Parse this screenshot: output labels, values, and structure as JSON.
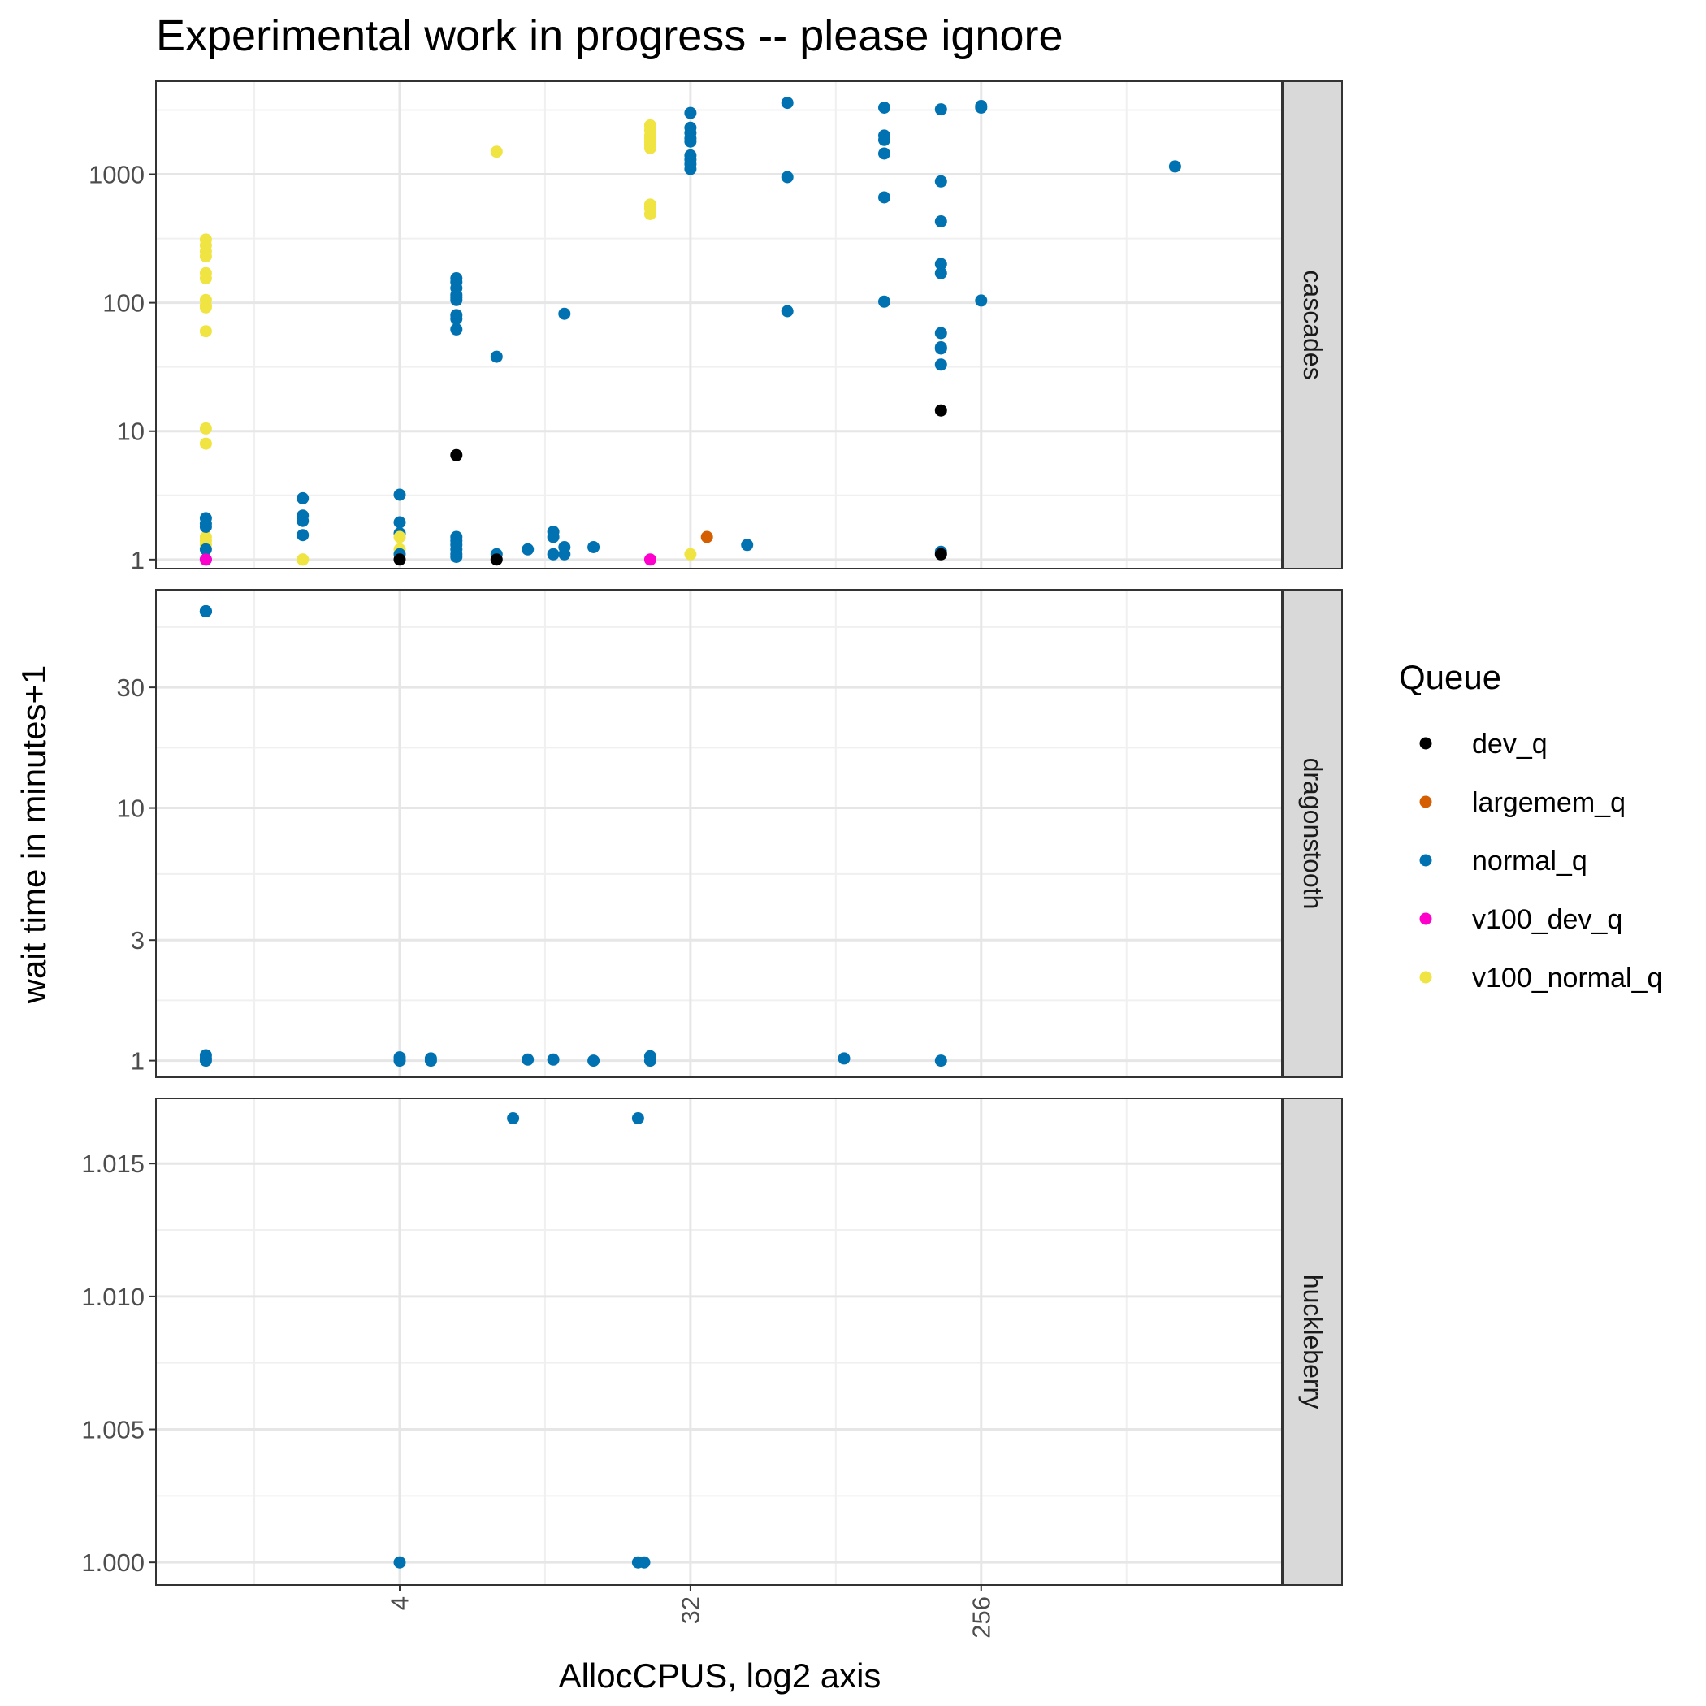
{
  "chart_data": {
    "type": "scatter",
    "title": "Experimental work in progress -- please ignore",
    "xlabel": "AllocCPUS, log2 axis",
    "ylabel": "wait time in minutes+1",
    "x_scale": "log2",
    "x_ticks": [
      4,
      32,
      256
    ],
    "xlim": [
      0.7,
      2200
    ],
    "grid": true,
    "legend": {
      "title": "Queue",
      "position": "right",
      "entries": [
        {
          "name": "dev_q",
          "color": "#000000"
        },
        {
          "name": "largemem_q",
          "color": "#D55E00"
        },
        {
          "name": "normal_q",
          "color": "#0072B2"
        },
        {
          "name": "v100_dev_q",
          "color": "#FF00CC"
        },
        {
          "name": "v100_normal_q",
          "color": "#F0E442"
        }
      ]
    },
    "facets": [
      {
        "label": "cascades",
        "y_scale": "log10",
        "ylim": [
          0.85,
          5300
        ],
        "y_ticks": [
          1,
          10,
          100,
          1000
        ],
        "y_tick_labels": [
          "1",
          "10",
          "100",
          "1000"
        ],
        "points": [
          {
            "queue": "v100_normal_q",
            "x": 1,
            "y": 310
          },
          {
            "queue": "v100_normal_q",
            "x": 1,
            "y": 280
          },
          {
            "queue": "v100_normal_q",
            "x": 1,
            "y": 250
          },
          {
            "queue": "v100_normal_q",
            "x": 1,
            "y": 230
          },
          {
            "queue": "v100_normal_q",
            "x": 1,
            "y": 170
          },
          {
            "queue": "v100_normal_q",
            "x": 1,
            "y": 155
          },
          {
            "queue": "v100_normal_q",
            "x": 1,
            "y": 105
          },
          {
            "queue": "v100_normal_q",
            "x": 1,
            "y": 95
          },
          {
            "queue": "v100_normal_q",
            "x": 1,
            "y": 92
          },
          {
            "queue": "v100_normal_q",
            "x": 1,
            "y": 60
          },
          {
            "queue": "v100_normal_q",
            "x": 1,
            "y": 10.5
          },
          {
            "queue": "v100_normal_q",
            "x": 1,
            "y": 8
          },
          {
            "queue": "v100_normal_q",
            "x": 1,
            "y": 1.5
          },
          {
            "queue": "v100_normal_q",
            "x": 1,
            "y": 1.4
          },
          {
            "queue": "v100_normal_q",
            "x": 1,
            "y": 1.3
          },
          {
            "queue": "normal_q",
            "x": 1,
            "y": 2.1
          },
          {
            "queue": "normal_q",
            "x": 1,
            "y": 1.9
          },
          {
            "queue": "normal_q",
            "x": 1,
            "y": 1.8
          },
          {
            "queue": "normal_q",
            "x": 1,
            "y": 1.2
          },
          {
            "queue": "normal_q",
            "x": 1,
            "y": 1.0
          },
          {
            "queue": "v100_dev_q",
            "x": 1,
            "y": 1.0
          },
          {
            "queue": "normal_q",
            "x": 2,
            "y": 3.0
          },
          {
            "queue": "normal_q",
            "x": 2,
            "y": 2.2
          },
          {
            "queue": "normal_q",
            "x": 2,
            "y": 2.0
          },
          {
            "queue": "normal_q",
            "x": 2,
            "y": 1.55
          },
          {
            "queue": "v100_normal_q",
            "x": 2,
            "y": 1.0
          },
          {
            "queue": "v100_normal_q",
            "x": 2,
            "y": 1.0
          },
          {
            "queue": "normal_q",
            "x": 4,
            "y": 3.2
          },
          {
            "queue": "normal_q",
            "x": 4,
            "y": 1.95
          },
          {
            "queue": "normal_q",
            "x": 4,
            "y": 1.6
          },
          {
            "queue": "v100_normal_q",
            "x": 4,
            "y": 1.5
          },
          {
            "queue": "v100_normal_q",
            "x": 4,
            "y": 1.2
          },
          {
            "queue": "normal_q",
            "x": 4,
            "y": 1.1
          },
          {
            "queue": "dev_q",
            "x": 4,
            "y": 1.0
          },
          {
            "queue": "normal_q",
            "x": 6,
            "y": 155
          },
          {
            "queue": "normal_q",
            "x": 6,
            "y": 145
          },
          {
            "queue": "normal_q",
            "x": 6,
            "y": 130
          },
          {
            "queue": "normal_q",
            "x": 6,
            "y": 115
          },
          {
            "queue": "normal_q",
            "x": 6,
            "y": 110
          },
          {
            "queue": "normal_q",
            "x": 6,
            "y": 105
          },
          {
            "queue": "normal_q",
            "x": 6,
            "y": 80
          },
          {
            "queue": "normal_q",
            "x": 6,
            "y": 75
          },
          {
            "queue": "normal_q",
            "x": 6,
            "y": 62
          },
          {
            "queue": "dev_q",
            "x": 6,
            "y": 6.5
          },
          {
            "queue": "normal_q",
            "x": 6,
            "y": 1.5
          },
          {
            "queue": "normal_q",
            "x": 6,
            "y": 1.4
          },
          {
            "queue": "normal_q",
            "x": 6,
            "y": 1.3
          },
          {
            "queue": "normal_q",
            "x": 6,
            "y": 1.2
          },
          {
            "queue": "normal_q",
            "x": 6,
            "y": 1.1
          },
          {
            "queue": "normal_q",
            "x": 6,
            "y": 1.05
          },
          {
            "queue": "v100_normal_q",
            "x": 8,
            "y": 1500
          },
          {
            "queue": "normal_q",
            "x": 8,
            "y": 38
          },
          {
            "queue": "normal_q",
            "x": 8,
            "y": 1.1
          },
          {
            "queue": "dev_q",
            "x": 8,
            "y": 1.0
          },
          {
            "queue": "normal_q",
            "x": 10,
            "y": 1.2
          },
          {
            "queue": "normal_q",
            "x": 12,
            "y": 1.65
          },
          {
            "queue": "normal_q",
            "x": 12,
            "y": 1.5
          },
          {
            "queue": "normal_q",
            "x": 12,
            "y": 1.1
          },
          {
            "queue": "normal_q",
            "x": 13,
            "y": 82
          },
          {
            "queue": "normal_q",
            "x": 13,
            "y": 1.25
          },
          {
            "queue": "normal_q",
            "x": 13,
            "y": 1.1
          },
          {
            "queue": "normal_q",
            "x": 16,
            "y": 1.25
          },
          {
            "queue": "v100_normal_q",
            "x": 24,
            "y": 2400
          },
          {
            "queue": "v100_normal_q",
            "x": 24,
            "y": 2200
          },
          {
            "queue": "v100_normal_q",
            "x": 24,
            "y": 2000
          },
          {
            "queue": "v100_normal_q",
            "x": 24,
            "y": 1900
          },
          {
            "queue": "v100_normal_q",
            "x": 24,
            "y": 1800
          },
          {
            "queue": "v100_normal_q",
            "x": 24,
            "y": 1700
          },
          {
            "queue": "v100_normal_q",
            "x": 24,
            "y": 1600
          },
          {
            "queue": "v100_normal_q",
            "x": 24,
            "y": 580
          },
          {
            "queue": "v100_normal_q",
            "x": 24,
            "y": 560
          },
          {
            "queue": "v100_normal_q",
            "x": 24,
            "y": 540
          },
          {
            "queue": "v100_normal_q",
            "x": 24,
            "y": 490
          },
          {
            "queue": "v100_dev_q",
            "x": 24,
            "y": 1.0
          },
          {
            "queue": "normal_q",
            "x": 32,
            "y": 3000
          },
          {
            "queue": "normal_q",
            "x": 32,
            "y": 2300
          },
          {
            "queue": "normal_q",
            "x": 32,
            "y": 2100
          },
          {
            "queue": "normal_q",
            "x": 32,
            "y": 1900
          },
          {
            "queue": "normal_q",
            "x": 32,
            "y": 1800
          },
          {
            "queue": "normal_q",
            "x": 32,
            "y": 1400
          },
          {
            "queue": "normal_q",
            "x": 32,
            "y": 1300
          },
          {
            "queue": "normal_q",
            "x": 32,
            "y": 1200
          },
          {
            "queue": "normal_q",
            "x": 32,
            "y": 1100
          },
          {
            "queue": "v100_normal_q",
            "x": 32,
            "y": 1.1
          },
          {
            "queue": "largemem_q",
            "x": 36,
            "y": 1.5
          },
          {
            "queue": "normal_q",
            "x": 48,
            "y": 1.3
          },
          {
            "queue": "normal_q",
            "x": 64,
            "y": 3600
          },
          {
            "queue": "normal_q",
            "x": 64,
            "y": 950
          },
          {
            "queue": "normal_q",
            "x": 64,
            "y": 86
          },
          {
            "queue": "normal_q",
            "x": 128,
            "y": 3300
          },
          {
            "queue": "normal_q",
            "x": 128,
            "y": 2000
          },
          {
            "queue": "normal_q",
            "x": 128,
            "y": 1850
          },
          {
            "queue": "normal_q",
            "x": 128,
            "y": 1450
          },
          {
            "queue": "normal_q",
            "x": 128,
            "y": 660
          },
          {
            "queue": "normal_q",
            "x": 128,
            "y": 102
          },
          {
            "queue": "normal_q",
            "x": 192,
            "y": 3200
          },
          {
            "queue": "normal_q",
            "x": 192,
            "y": 880
          },
          {
            "queue": "normal_q",
            "x": 192,
            "y": 430
          },
          {
            "queue": "normal_q",
            "x": 192,
            "y": 200
          },
          {
            "queue": "normal_q",
            "x": 192,
            "y": 170
          },
          {
            "queue": "normal_q",
            "x": 192,
            "y": 58
          },
          {
            "queue": "normal_q",
            "x": 192,
            "y": 45
          },
          {
            "queue": "normal_q",
            "x": 192,
            "y": 44
          },
          {
            "queue": "normal_q",
            "x": 192,
            "y": 33
          },
          {
            "queue": "dev_q",
            "x": 192,
            "y": 14.5
          },
          {
            "queue": "normal_q",
            "x": 192,
            "y": 1.15
          },
          {
            "queue": "dev_q",
            "x": 192,
            "y": 1.1
          },
          {
            "queue": "normal_q",
            "x": 256,
            "y": 3400
          },
          {
            "queue": "normal_q",
            "x": 256,
            "y": 3300
          },
          {
            "queue": "normal_q",
            "x": 256,
            "y": 104
          },
          {
            "queue": "normal_q",
            "x": 1024,
            "y": 1150
          }
        ]
      },
      {
        "label": "dragonstooth",
        "y_scale": "log10",
        "ylim": [
          0.86,
          73
        ],
        "y_ticks": [
          1,
          3,
          10,
          30
        ],
        "y_tick_labels": [
          "1",
          "3",
          "10",
          "30"
        ],
        "points": [
          {
            "queue": "normal_q",
            "x": 1,
            "y": 60
          },
          {
            "queue": "normal_q",
            "x": 1,
            "y": 60
          },
          {
            "queue": "normal_q",
            "x": 1,
            "y": 60
          },
          {
            "queue": "normal_q",
            "x": 1,
            "y": 60
          },
          {
            "queue": "normal_q",
            "x": 1,
            "y": 1.05
          },
          {
            "queue": "normal_q",
            "x": 1,
            "y": 1.02
          },
          {
            "queue": "normal_q",
            "x": 1,
            "y": 1.0
          },
          {
            "queue": "normal_q",
            "x": 4,
            "y": 1.03
          },
          {
            "queue": "normal_q",
            "x": 4,
            "y": 1.0
          },
          {
            "queue": "normal_q",
            "x": 5,
            "y": 1.02
          },
          {
            "queue": "normal_q",
            "x": 5,
            "y": 1.0
          },
          {
            "queue": "normal_q",
            "x": 10,
            "y": 1.01
          },
          {
            "queue": "normal_q",
            "x": 12,
            "y": 1.01
          },
          {
            "queue": "normal_q",
            "x": 16,
            "y": 1.0
          },
          {
            "queue": "normal_q",
            "x": 24,
            "y": 1.04
          },
          {
            "queue": "normal_q",
            "x": 24,
            "y": 1.0
          },
          {
            "queue": "normal_q",
            "x": 96,
            "y": 1.02
          },
          {
            "queue": "normal_q",
            "x": 192,
            "y": 1.0
          }
        ]
      },
      {
        "label": "huckleberry",
        "y_scale": "linear",
        "ylim": [
          0.99915,
          1.01745
        ],
        "y_ticks": [
          1.0,
          1.005,
          1.01,
          1.015
        ],
        "y_tick_labels": [
          "1.000",
          "1.005",
          "1.010",
          "1.015"
        ],
        "points": [
          {
            "queue": "normal_q",
            "x": 4,
            "y": 1.0
          },
          {
            "queue": "normal_q",
            "x": 9,
            "y": 1.0167
          },
          {
            "queue": "normal_q",
            "x": 22,
            "y": 1.0167
          },
          {
            "queue": "normal_q",
            "x": 22,
            "y": 1.0
          },
          {
            "queue": "normal_q",
            "x": 23,
            "y": 1.0
          }
        ]
      }
    ]
  }
}
